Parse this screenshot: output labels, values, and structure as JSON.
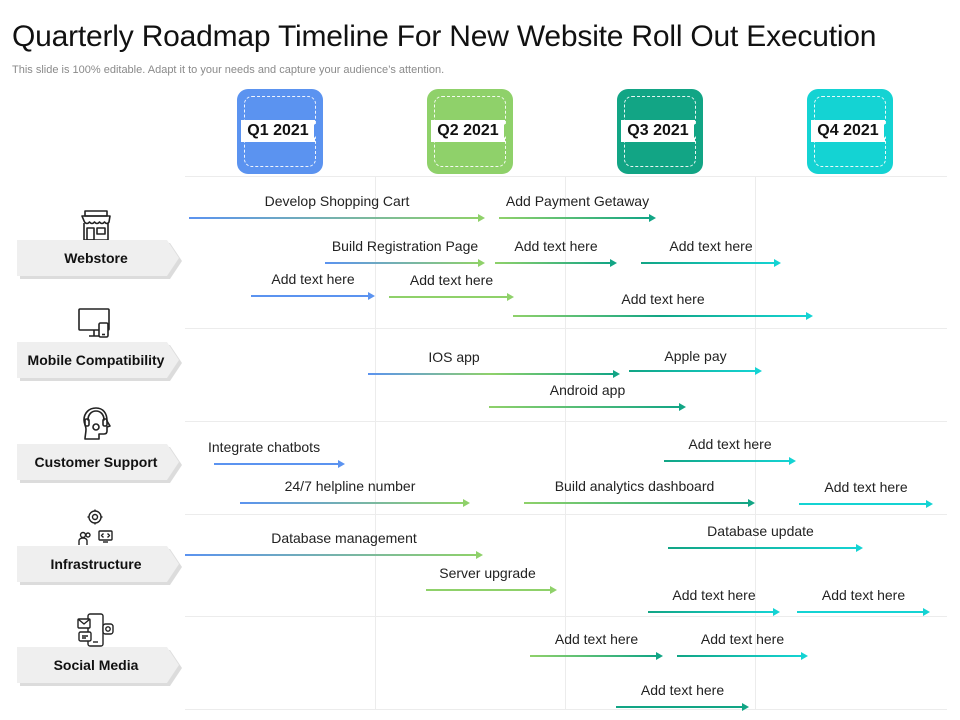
{
  "title": "Quarterly Roadmap Timeline For New Website Roll Out Execution",
  "subtitle": "This slide is 100% editable. Adapt it to your needs and capture your audience’s attention.",
  "colors": {
    "q1": "#5b93f0",
    "q2": "#8fd16a",
    "q3": "#12a585",
    "q4": "#14d3d3"
  },
  "quarters": [
    {
      "label": "Q1 2021",
      "color": "#5b93f0"
    },
    {
      "label": "Q2 2021",
      "color": "#8fd16a"
    },
    {
      "label": "Q3 2021",
      "color": "#12a585"
    },
    {
      "label": "Q4 2021",
      "color": "#14d3d3"
    }
  ],
  "categories": [
    {
      "label": "Webstore",
      "icon": "store-icon"
    },
    {
      "label": "Mobile Compatibility",
      "icon": "devices-icon"
    },
    {
      "label": "Customer Support",
      "icon": "headset-icon"
    },
    {
      "label": "Infrastructure",
      "icon": "network-icon"
    },
    {
      "label": "Social Media",
      "icon": "social-media-icon"
    }
  ],
  "tasks": [
    {
      "label": "Develop Shopping Cart",
      "category": "Webstore",
      "from": "Q1 2021",
      "to": "Q2 2021"
    },
    {
      "label": "Add Payment Getaway",
      "category": "Webstore",
      "from": "Q2 2021",
      "to": "Q3 2021"
    },
    {
      "label": "Build Registration Page",
      "category": "Webstore",
      "from": "Q1 2021",
      "to": "Q2 2021"
    },
    {
      "label": "Add text here",
      "category": "Webstore",
      "from": "Q2 2021",
      "to": "Q3 2021"
    },
    {
      "label": "Add text here",
      "category": "Webstore",
      "from": "Q3 2021",
      "to": "Q4 2021"
    },
    {
      "label": "Add text here",
      "category": "Webstore",
      "from": "Q1 2021",
      "to": "Q1 2021"
    },
    {
      "label": "Add text here",
      "category": "Webstore",
      "from": "Q2 2021",
      "to": "Q2 2021"
    },
    {
      "label": "Add text here",
      "category": "Webstore",
      "from": "Q2 2021",
      "to": "Q4 2021"
    },
    {
      "label": "IOS app",
      "category": "Mobile Compatibility",
      "from": "Q1 2021",
      "to": "Q3 2021"
    },
    {
      "label": "Apple pay",
      "category": "Mobile Compatibility",
      "from": "Q3 2021",
      "to": "Q4 2021"
    },
    {
      "label": "Android app",
      "category": "Mobile Compatibility",
      "from": "Q2 2021",
      "to": "Q3 2021"
    },
    {
      "label": "Integrate chatbots",
      "category": "Customer Support",
      "from": "Q1 2021",
      "to": "Q1 2021"
    },
    {
      "label": "Add text here",
      "category": "Customer Support",
      "from": "Q3 2021",
      "to": "Q4 2021"
    },
    {
      "label": "24/7 helpline number",
      "category": "Customer Support",
      "from": "Q1 2021",
      "to": "Q2 2021"
    },
    {
      "label": "Build analytics dashboard",
      "category": "Customer Support",
      "from": "Q2 2021",
      "to": "Q3 2021"
    },
    {
      "label": "Add text here",
      "category": "Customer Support",
      "from": "Q4 2021",
      "to": "Q4 2021"
    },
    {
      "label": "Database management",
      "category": "Infrastructure",
      "from": "Q1 2021",
      "to": "Q2 2021"
    },
    {
      "label": "Database update",
      "category": "Infrastructure",
      "from": "Q3 2021",
      "to": "Q4 2021"
    },
    {
      "label": "Server upgrade",
      "category": "Infrastructure",
      "from": "Q2 2021",
      "to": "Q2 2021"
    },
    {
      "label": "Add text here",
      "category": "Infrastructure",
      "from": "Q3 2021",
      "to": "Q4 2021"
    },
    {
      "label": "Add text here",
      "category": "Infrastructure",
      "from": "Q4 2021",
      "to": "Q4 2021"
    },
    {
      "label": "Add text here",
      "category": "Social Media",
      "from": "Q2 2021",
      "to": "Q3 2021"
    },
    {
      "label": "Add text here",
      "category": "Social Media",
      "from": "Q3 2021",
      "to": "Q4 2021"
    },
    {
      "label": "Add text here",
      "category": "Social Media",
      "from": "Q3 2021",
      "to": "Q3 2021"
    }
  ]
}
